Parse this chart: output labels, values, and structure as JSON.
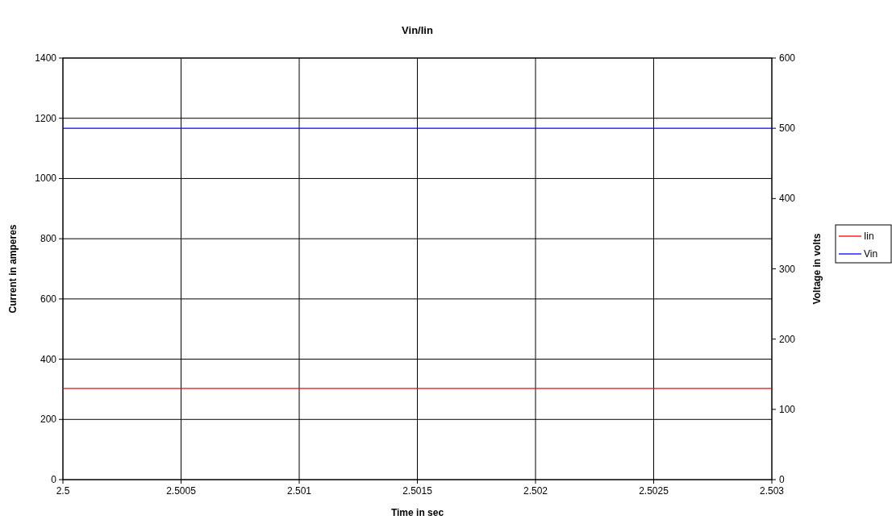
{
  "chart_data": {
    "type": "line",
    "title": "Vin/Iin",
    "xlabel": "Time in sec",
    "ylabel": "Current in amperes",
    "y2label": "Voltage in volts",
    "x": [
      2.5,
      2.503
    ],
    "series": [
      {
        "name": "Iin",
        "color": "#ff0000",
        "values": [
          303,
          303
        ]
      },
      {
        "name": "Vin",
        "color": "#0000ff",
        "axis": "y2",
        "values": [
          500,
          500
        ]
      }
    ],
    "xlim": [
      2.5,
      2.503
    ],
    "xticks": [
      2.5,
      2.5005,
      2.501,
      2.5015,
      2.502,
      2.5025,
      2.503
    ],
    "ylim": [
      0,
      1400
    ],
    "yticks": [
      0,
      200,
      400,
      600,
      800,
      1000,
      1200,
      1400
    ],
    "y2lim": [
      0,
      600
    ],
    "y2ticks": [
      0,
      100,
      200,
      300,
      400,
      500,
      600
    ],
    "grid": true,
    "legend": "right",
    "marker": "none",
    "line_style": "solid"
  }
}
